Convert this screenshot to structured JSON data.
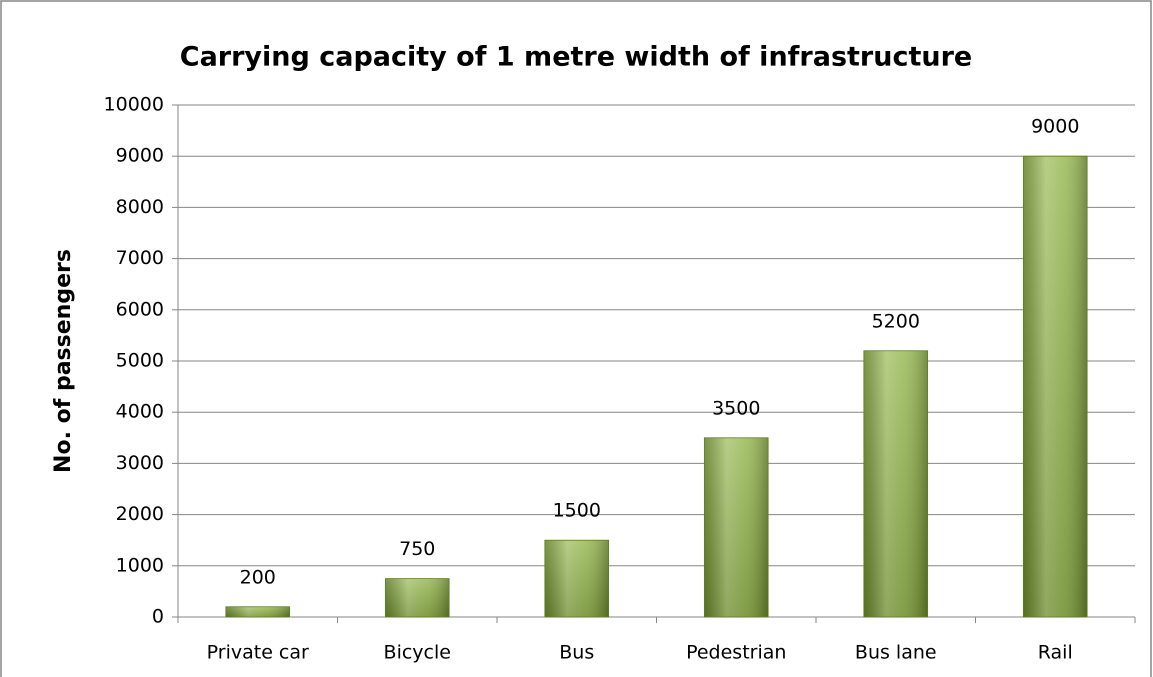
{
  "chart_data": {
    "type": "bar",
    "title": "Carrying capacity of 1 metre width of infrastructure",
    "y_label": "No. of passengers",
    "categories": [
      "Private car",
      "Bicycle",
      "Bus",
      "Pedestrian",
      "Bus lane",
      "Rail"
    ],
    "values": [
      200,
      750,
      1500,
      3500,
      5200,
      9000
    ],
    "color": "#86ad36",
    "ylim": [
      0,
      10000
    ],
    "yticks": [
      0,
      1000,
      2000,
      3000,
      4000,
      5000,
      6000,
      7000,
      8000,
      9000,
      10000
    ],
    "grid": true,
    "data_labels": true
  }
}
